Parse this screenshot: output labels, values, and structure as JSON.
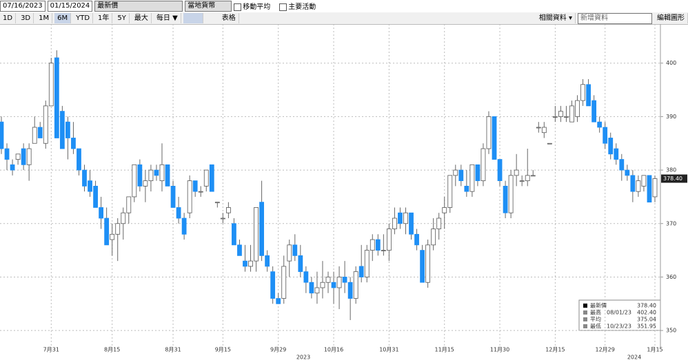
{
  "toolbar": {
    "start_date": "07/16/2023",
    "end_date": "01/15/2024",
    "price_field": "最新價",
    "currency": "當地貨幣",
    "moving_average": "移動平均",
    "key_events": "主要活動",
    "ranges": [
      "1D",
      "3D",
      "1M",
      "6M",
      "YTD",
      "1年",
      "5Y",
      "最大"
    ],
    "frequency": "每日 ▼",
    "table": "表格",
    "related": "相關資料 ▾",
    "add_data": "新增資料",
    "edit": "編輯圖形"
  },
  "chart_data": {
    "type": "candlestick",
    "up_color": "#ffffff",
    "down_color": "#1e8ff5",
    "grid": true,
    "categories": [
      null,
      null,
      null,
      null,
      null,
      null,
      null,
      null,
      null,
      "7月31",
      null,
      null,
      null,
      null,
      null,
      null,
      null,
      null,
      null,
      null,
      "8月15",
      null,
      null,
      null,
      null,
      null,
      null,
      null,
      null,
      null,
      null,
      "8月31",
      null,
      null,
      null,
      null,
      null,
      null,
      null,
      null,
      "9月15",
      null,
      null,
      null,
      null,
      null,
      null,
      null,
      null,
      null,
      "9月29",
      null,
      null,
      null,
      null,
      null,
      null,
      null,
      null,
      null,
      "10月16",
      null,
      null,
      null,
      null,
      null,
      null,
      null,
      null,
      null,
      "10月31",
      null,
      null,
      null,
      null,
      null,
      null,
      null,
      null,
      null,
      "11月15",
      null,
      null,
      null,
      null,
      null,
      null,
      null,
      null,
      null,
      "11月30",
      null,
      null,
      null,
      null,
      null,
      null,
      null,
      null,
      null,
      "12月15",
      null,
      null,
      null,
      null,
      null,
      null,
      null,
      null,
      "12月29",
      null,
      null,
      null,
      null,
      null,
      null,
      null,
      null,
      "1月15"
    ],
    "year_labels": [
      "2023",
      "2024"
    ],
    "open": [
      389,
      384,
      381,
      382,
      384,
      381,
      385,
      388,
      385,
      392,
      401,
      391,
      389,
      386,
      384,
      380,
      378,
      377,
      373,
      371,
      367,
      368,
      370,
      372,
      375,
      381,
      377,
      378,
      380,
      378,
      381,
      377,
      373,
      371,
      372,
      378,
      376,
      377,
      381,
      374,
      371,
      372,
      370,
      366,
      363,
      362,
      363,
      374,
      364,
      361,
      356,
      356,
      363,
      366,
      364,
      361,
      359,
      357,
      358,
      359,
      359,
      358,
      360,
      359,
      356,
      362,
      360,
      365,
      367,
      365,
      365,
      369,
      372,
      370,
      372,
      368,
      365,
      359,
      366,
      369,
      372,
      373,
      379,
      380,
      377,
      376,
      381,
      378,
      384,
      390,
      382,
      377,
      372,
      379,
      378,
      378,
      379,
      388,
      387,
      385,
      390,
      390,
      390,
      389,
      390,
      393,
      396,
      393,
      389,
      388,
      386,
      384,
      382,
      380,
      379,
      376,
      377,
      379,
      375
    ],
    "high": [
      390,
      385,
      382,
      383,
      385,
      385,
      390,
      389,
      393,
      401,
      402.4,
      392,
      390,
      389,
      384,
      381,
      380,
      378,
      375,
      373,
      370,
      371,
      373,
      375,
      381,
      382,
      380,
      381,
      381,
      385,
      381,
      378,
      375,
      372,
      379,
      378,
      377,
      380,
      381,
      374,
      372,
      374,
      371,
      367,
      366,
      366,
      373,
      378,
      365,
      362,
      357,
      364,
      367,
      368,
      366,
      362,
      360,
      361,
      363,
      361,
      361,
      362,
      363,
      360,
      362,
      366,
      366,
      368,
      368,
      368,
      370,
      373,
      373,
      373,
      372,
      369,
      366,
      367,
      371,
      372,
      375,
      379,
      381,
      381,
      380,
      381,
      381,
      385,
      391,
      390,
      382,
      378,
      380,
      383,
      379,
      384,
      380,
      389,
      389,
      385,
      392,
      392,
      392,
      393,
      394,
      397,
      397,
      394,
      390,
      389,
      387,
      385,
      383,
      381,
      380,
      379,
      379,
      379,
      379
    ],
    "low": [
      383,
      380,
      379,
      381,
      380,
      378,
      385,
      386,
      384,
      392,
      386,
      384,
      382,
      383,
      379,
      376,
      375,
      373,
      369,
      366,
      364,
      363,
      367,
      370,
      374,
      376,
      374,
      376,
      378,
      376,
      377,
      373,
      370,
      367,
      371,
      375,
      375,
      376,
      376,
      373,
      370,
      371,
      366,
      364,
      361,
      361,
      361,
      363,
      361,
      355,
      355,
      355,
      360,
      363,
      360,
      357,
      356,
      355,
      356,
      357,
      355,
      354,
      357,
      351.95,
      355,
      359,
      359,
      363,
      364,
      364,
      363,
      368,
      369,
      368,
      367,
      365,
      359,
      358,
      365,
      367,
      369,
      372,
      377,
      377,
      375,
      375,
      377,
      377,
      383,
      382,
      377,
      371,
      371,
      377,
      377,
      377,
      379,
      387,
      386,
      385,
      389,
      389,
      389,
      389,
      389,
      392,
      392,
      389,
      387,
      384,
      382,
      381,
      378,
      378,
      374,
      375,
      376,
      374,
      374
    ],
    "close": [
      384,
      382,
      380,
      383,
      381,
      384,
      388,
      386,
      392,
      400,
      386,
      384,
      386,
      384,
      380,
      377,
      376,
      373,
      371,
      366,
      368,
      370,
      372,
      375,
      381,
      377,
      378,
      380,
      379,
      381,
      377,
      373,
      371,
      368,
      378,
      376,
      376,
      380,
      376,
      374,
      371,
      373,
      366,
      364,
      362,
      363,
      373,
      364,
      362,
      356,
      355,
      362,
      366,
      364,
      361,
      359,
      357,
      358,
      359,
      360,
      358,
      360,
      359,
      356,
      361,
      360,
      365,
      367,
      365,
      365,
      369,
      371,
      370,
      372,
      368,
      366,
      359,
      366,
      369,
      371,
      373,
      379,
      380,
      378,
      376,
      381,
      378,
      384,
      390,
      382,
      378,
      372,
      379,
      380,
      378,
      379,
      379,
      388,
      388,
      385,
      390,
      391,
      390,
      392,
      393,
      396,
      392,
      389,
      388,
      385,
      383,
      382,
      380,
      379,
      376,
      378,
      379,
      374,
      378.4
    ],
    "ylim": [
      346.8,
      407.3
    ],
    "yticks": [
      350,
      360,
      370,
      380,
      390,
      400
    ],
    "legend": [
      {
        "name": "最新價",
        "value": 378.4,
        "value_label": "378.40"
      },
      {
        "name": "最高",
        "date": "08/01/23",
        "value": 402.4,
        "value_label": "402.40"
      },
      {
        "name": "平均",
        "value": 375.04
      },
      {
        "name": "最低",
        "date": "10/23/23",
        "value": 351.95
      }
    ]
  }
}
